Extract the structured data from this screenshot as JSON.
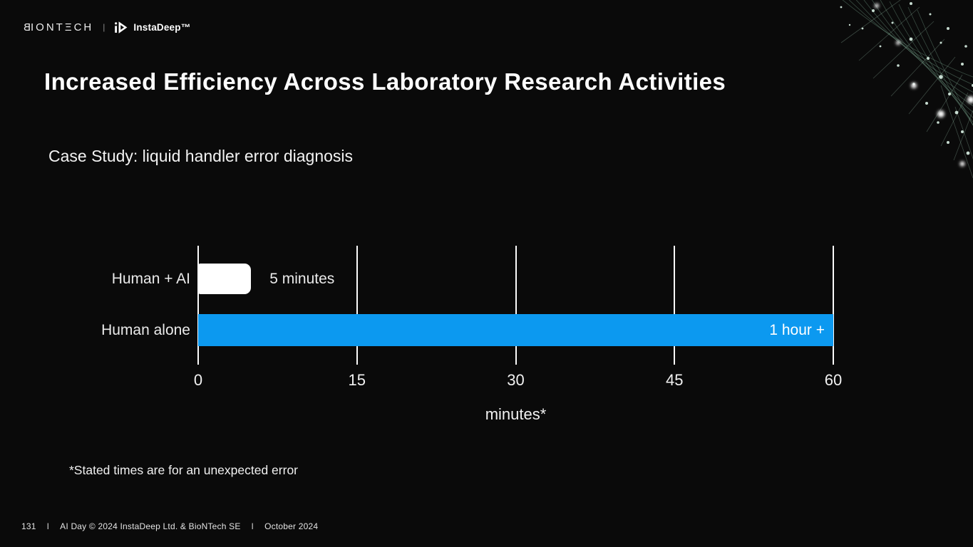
{
  "header": {
    "biontech_logo_text": "BIONTΞCH",
    "divider": "|",
    "instadeep_logo_text": "InstaDeep™"
  },
  "title": "Increased Efficiency Across Laboratory Research Activities",
  "subtitle": "Case Study: liquid handler error diagnosis",
  "chart_data": {
    "type": "bar",
    "orientation": "horizontal",
    "title": "",
    "xlabel": "minutes*",
    "xlim": [
      0,
      60
    ],
    "xticks": [
      0,
      15,
      30,
      45,
      60
    ],
    "grid": true,
    "categories": [
      "Human + AI",
      "Human alone"
    ],
    "series": [
      {
        "name": "Human + AI",
        "value": 5,
        "value_label": "5 minutes",
        "label_position": "outside",
        "color": "#ffffff",
        "label_color": "#eaeaea",
        "rounded": true
      },
      {
        "name": "Human alone",
        "value": 60,
        "value_label": "1 hour +",
        "label_position": "inside",
        "color": "#0c99f0",
        "label_color": "#ffffff",
        "rounded": false
      }
    ]
  },
  "footnote": "*Stated times are for an unexpected error",
  "footer": {
    "page_number": "131",
    "separator": "I",
    "copyright": "AI Day © 2024 InstaDeep Ltd. & BioNTech SE",
    "date": "October 2024"
  },
  "colors": {
    "background": "#0a0a0a",
    "bar_blue": "#0c99f0",
    "bar_white": "#ffffff",
    "gridline": "#fbfbfb"
  }
}
